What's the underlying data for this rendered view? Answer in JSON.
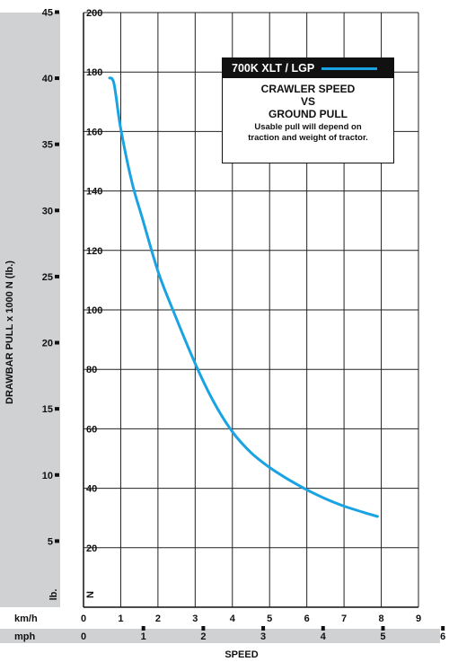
{
  "chart_data": {
    "type": "line",
    "ylabel": "DRAWBAR PULL x 1000 N (lb.)",
    "xlabel": "SPEED",
    "y_unit_left": "lb.",
    "y_unit_right": "N",
    "x_unit_top": "km/h",
    "x_unit_bottom": "mph",
    "ylim_n": [
      0,
      200
    ],
    "y_ticks_n": [
      20,
      40,
      60,
      80,
      100,
      120,
      140,
      160,
      180,
      200
    ],
    "y_ticks_lb": [
      5,
      10,
      15,
      20,
      25,
      30,
      35,
      40,
      45
    ],
    "xlim_kmh": [
      0,
      9
    ],
    "x_ticks_kmh": [
      0,
      1,
      2,
      3,
      4,
      5,
      6,
      7,
      8,
      9
    ],
    "x_ticks_mph": [
      0,
      1,
      2,
      3,
      4,
      5,
      6
    ],
    "series": [
      {
        "name": "700K XLT / LGP",
        "color": "#1aa3e3",
        "x": [
          0.7,
          0.82,
          1.0,
          1.3,
          1.6,
          2.0,
          2.4,
          3.0,
          3.5,
          4.0,
          4.5,
          5.0,
          5.5,
          6.0,
          6.5,
          7.0,
          7.5,
          7.9
        ],
        "y": [
          178,
          176,
          161,
          143,
          130,
          113,
          100,
          82,
          69,
          59,
          52,
          47,
          43,
          39.5,
          36.5,
          34,
          32,
          30.5
        ]
      }
    ],
    "legend": {
      "title": "700K XLT / LGP",
      "line1": "CRAWLER SPEED",
      "line2": "VS",
      "line3": "GROUND PULL",
      "note1": "Usable pull will depend on",
      "note2": "traction and weight of tractor."
    },
    "grid": true,
    "legend_position": "top-right"
  }
}
